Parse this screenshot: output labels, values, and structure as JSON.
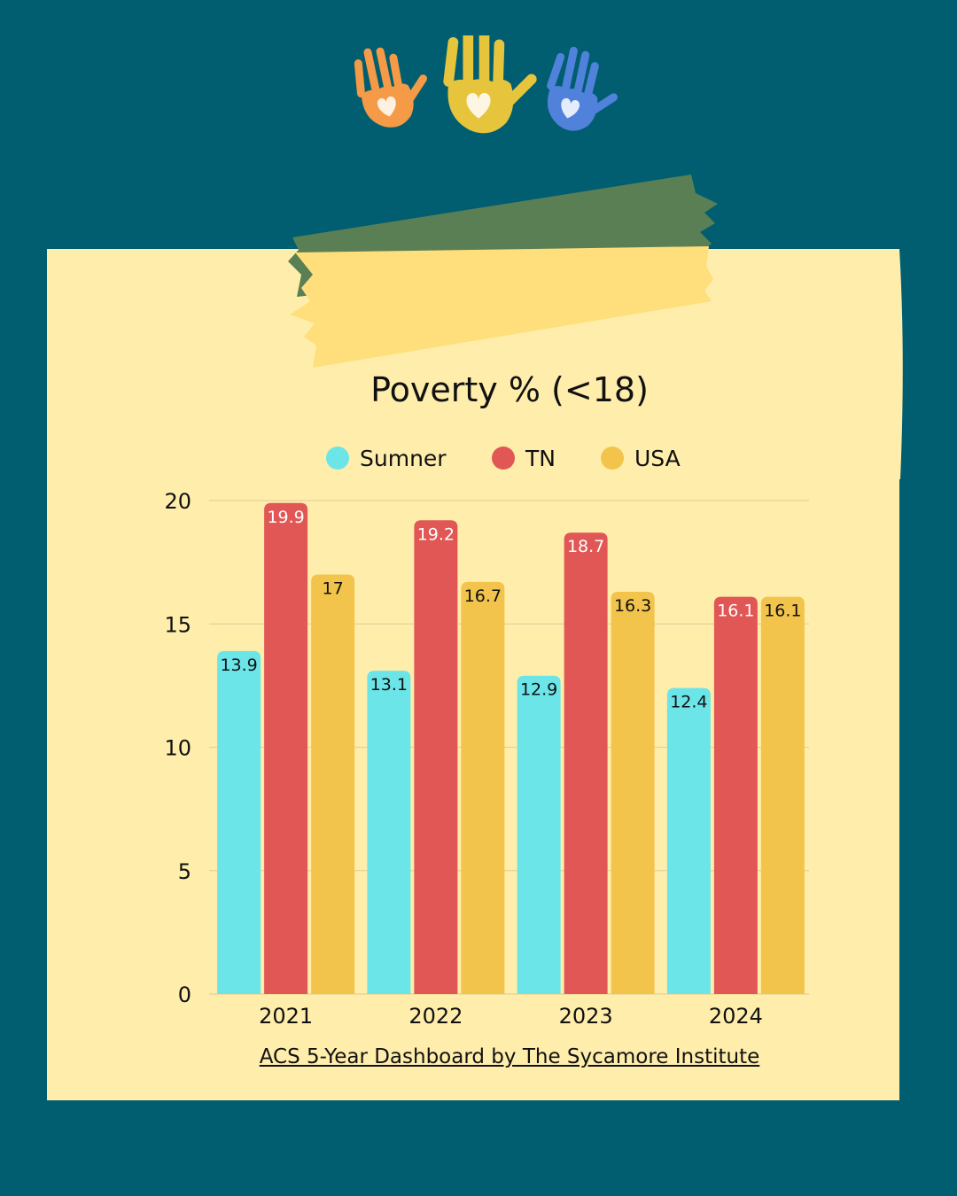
{
  "source_link": "ACS 5-Year Dashboard by The Sycamore Institute",
  "decor": {
    "hands": [
      {
        "icon": "handprint-heart-icon",
        "color": "#f59a47"
      },
      {
        "icon": "handprint-heart-icon",
        "color": "#e6c43c"
      },
      {
        "icon": "handprint-heart-icon",
        "color": "#5082dc"
      }
    ],
    "tape_colors": [
      "#5b7f54",
      "#ffde7c"
    ]
  },
  "chart_data": {
    "type": "bar",
    "title": "Poverty % (<18)",
    "categories": [
      "2021",
      "2022",
      "2023",
      "2024"
    ],
    "series": [
      {
        "name": "Sumner",
        "color": "#6be5e8",
        "values": [
          13.9,
          13.1,
          12.9,
          12.4
        ],
        "label_color": "#111111"
      },
      {
        "name": "TN",
        "color": "#e15755",
        "values": [
          19.9,
          19.2,
          18.7,
          16.1
        ],
        "label_color": "#ffffff"
      },
      {
        "name": "USA",
        "color": "#f2c44b",
        "values": [
          17,
          16.7,
          16.3,
          16.1
        ],
        "label_color": "#111111"
      }
    ],
    "yticks": [
      0,
      5,
      10,
      15,
      20
    ],
    "ylim": [
      0,
      20
    ],
    "grid": true,
    "legend_position": "top"
  }
}
